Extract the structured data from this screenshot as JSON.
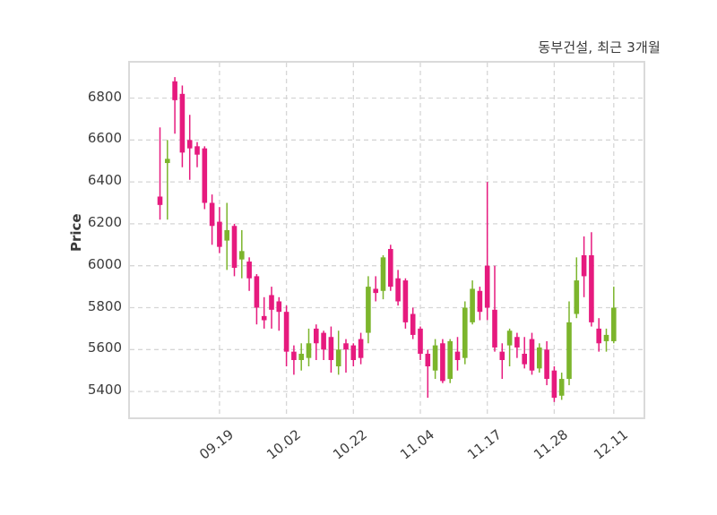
{
  "title": "동부건설, 최근 3개월",
  "y_axis": {
    "label": "Price",
    "ticks": [
      5400,
      5600,
      5800,
      6000,
      6200,
      6400,
      6600,
      6800
    ]
  },
  "x_axis": {
    "tick_labels": [
      "09.19",
      "10.02",
      "10.22",
      "11.04",
      "11.17",
      "11.28",
      "12.11"
    ],
    "tick_indices": [
      8,
      17,
      26,
      35,
      44,
      53,
      61
    ]
  },
  "chart_data": {
    "type": "candlestick",
    "title": "동부건설, 최근 3개월",
    "xlabel": "",
    "ylabel": "Price",
    "ylim": [
      5250,
      6980
    ],
    "grid": true,
    "up_color": "#7CB52C",
    "down_color": "#E61A7E",
    "grid_color": "#d6d6d6",
    "columns": [
      "open",
      "high",
      "low",
      "close"
    ],
    "candles": [
      [
        6330,
        6660,
        6220,
        6290
      ],
      [
        6490,
        6600,
        6220,
        6510
      ],
      [
        6880,
        6900,
        6630,
        6790
      ],
      [
        6820,
        6860,
        6470,
        6540
      ],
      [
        6600,
        6720,
        6410,
        6560
      ],
      [
        6570,
        6590,
        6470,
        6530
      ],
      [
        6560,
        6570,
        6270,
        6300
      ],
      [
        6300,
        6340,
        6100,
        6190
      ],
      [
        6210,
        6280,
        6060,
        6090
      ],
      [
        6120,
        6300,
        5980,
        6170
      ],
      [
        6190,
        6200,
        5950,
        5990
      ],
      [
        6030,
        6170,
        5940,
        6070
      ],
      [
        6020,
        6040,
        5880,
        5940
      ],
      [
        5950,
        5960,
        5720,
        5800
      ],
      [
        5760,
        5850,
        5700,
        5740
      ],
      [
        5860,
        5900,
        5700,
        5790
      ],
      [
        5830,
        5850,
        5690,
        5780
      ],
      [
        5780,
        5810,
        5520,
        5590
      ],
      [
        5590,
        5620,
        5480,
        5550
      ],
      [
        5550,
        5630,
        5500,
        5580
      ],
      [
        5560,
        5700,
        5520,
        5630
      ],
      [
        5700,
        5720,
        5550,
        5630
      ],
      [
        5680,
        5690,
        5550,
        5600
      ],
      [
        5660,
        5710,
        5490,
        5550
      ],
      [
        5520,
        5690,
        5480,
        5600
      ],
      [
        5630,
        5650,
        5490,
        5600
      ],
      [
        5620,
        5630,
        5520,
        5550
      ],
      [
        5650,
        5680,
        5530,
        5560
      ],
      [
        5680,
        5950,
        5630,
        5900
      ],
      [
        5890,
        5950,
        5830,
        5870
      ],
      [
        5880,
        6050,
        5840,
        6040
      ],
      [
        6080,
        6100,
        5880,
        5900
      ],
      [
        5940,
        5980,
        5810,
        5830
      ],
      [
        5930,
        5940,
        5700,
        5730
      ],
      [
        5770,
        5800,
        5650,
        5670
      ],
      [
        5700,
        5710,
        5550,
        5580
      ],
      [
        5580,
        5600,
        5370,
        5520
      ],
      [
        5500,
        5650,
        5460,
        5620
      ],
      [
        5630,
        5650,
        5440,
        5450
      ],
      [
        5460,
        5650,
        5440,
        5640
      ],
      [
        5590,
        5660,
        5500,
        5550
      ],
      [
        5560,
        5830,
        5530,
        5800
      ],
      [
        5730,
        5930,
        5720,
        5890
      ],
      [
        5880,
        5900,
        5740,
        5780
      ],
      [
        6000,
        6400,
        5740,
        5800
      ],
      [
        5790,
        6000,
        5590,
        5610
      ],
      [
        5590,
        5630,
        5460,
        5550
      ],
      [
        5620,
        5700,
        5520,
        5690
      ],
      [
        5660,
        5680,
        5560,
        5610
      ],
      [
        5580,
        5660,
        5510,
        5530
      ],
      [
        5650,
        5680,
        5480,
        5500
      ],
      [
        5510,
        5630,
        5490,
        5610
      ],
      [
        5600,
        5640,
        5430,
        5460
      ],
      [
        5500,
        5520,
        5350,
        5370
      ],
      [
        5380,
        5490,
        5360,
        5460
      ],
      [
        5460,
        5830,
        5430,
        5730
      ],
      [
        5770,
        6040,
        5750,
        5930
      ],
      [
        6050,
        6140,
        5850,
        5950
      ],
      [
        6050,
        6160,
        5710,
        5730
      ],
      [
        5700,
        5750,
        5590,
        5630
      ],
      [
        5640,
        5700,
        5590,
        5670
      ],
      [
        5640,
        5900,
        5630,
        5800
      ]
    ]
  }
}
